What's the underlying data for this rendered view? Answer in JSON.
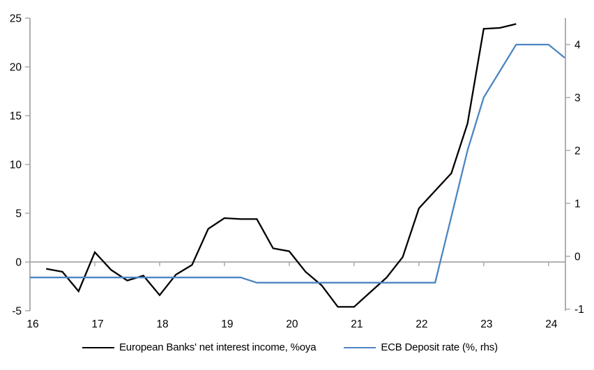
{
  "chart_data": {
    "type": "line",
    "title": "",
    "xlabel": "",
    "ylabel_left": "",
    "ylabel_right": "",
    "grid": false,
    "zero_line": true,
    "legend_position": "bottom",
    "axis_color": "#a6a6a6",
    "text_color": "#000000",
    "x_axis": {
      "range": [
        16,
        24.26
      ],
      "ticks": [
        16,
        17,
        18,
        19,
        20,
        21,
        22,
        23,
        24
      ]
    },
    "left_axis": {
      "range": [
        -5,
        25
      ],
      "ticks": [
        25,
        20,
        15,
        10,
        5,
        0,
        -5
      ]
    },
    "right_axis": {
      "range": [
        -1.03,
        4.5
      ],
      "ticks": [
        4,
        3,
        2,
        1,
        0,
        -1
      ]
    },
    "series": [
      {
        "name": "European Banks' net interest income, %oya",
        "axis": "left",
        "color": "#000000",
        "width": 2.3,
        "x": [
          16.25,
          16.5,
          16.75,
          17,
          17.25,
          17.5,
          17.75,
          18,
          18.25,
          18.5,
          18.75,
          19,
          19.25,
          19.5,
          19.75,
          20,
          20.25,
          20.5,
          20.75,
          21,
          21.25,
          21.5,
          21.75,
          22,
          22.25,
          22.5,
          22.75,
          23,
          23.25,
          23.5
        ],
        "values": [
          -0.7,
          -1.0,
          -3.0,
          1.0,
          -0.8,
          -1.9,
          -1.4,
          -3.4,
          -1.3,
          -0.3,
          3.4,
          4.5,
          4.4,
          4.4,
          1.4,
          1.1,
          -1.0,
          -2.4,
          -4.6,
          -4.6,
          -3.1,
          -1.6,
          0.5,
          5.5,
          7.3,
          9.1,
          14.2,
          23.9,
          24.0,
          24.4
        ]
      },
      {
        "name": "ECB Deposit rate (%, rhs)",
        "axis": "right",
        "color": "#4c85c2",
        "width": 2.3,
        "x": [
          16,
          16.25,
          16.5,
          16.75,
          17,
          17.25,
          17.5,
          17.75,
          18,
          18.25,
          18.5,
          18.75,
          19,
          19.25,
          19.5,
          19.75,
          20,
          20.25,
          20.5,
          20.75,
          21,
          21.25,
          21.5,
          21.75,
          22,
          22.25,
          22.5,
          22.75,
          23,
          23.25,
          23.5,
          23.75,
          24,
          24.25
        ],
        "values": [
          -0.4,
          -0.4,
          -0.4,
          -0.4,
          -0.4,
          -0.4,
          -0.4,
          -0.4,
          -0.4,
          -0.4,
          -0.4,
          -0.4,
          -0.4,
          -0.4,
          -0.5,
          -0.5,
          -0.5,
          -0.5,
          -0.5,
          -0.5,
          -0.5,
          -0.5,
          -0.5,
          -0.5,
          -0.5,
          -0.5,
          0.75,
          2.0,
          3.0,
          3.5,
          4.0,
          4.0,
          4.0,
          3.75
        ]
      }
    ]
  }
}
